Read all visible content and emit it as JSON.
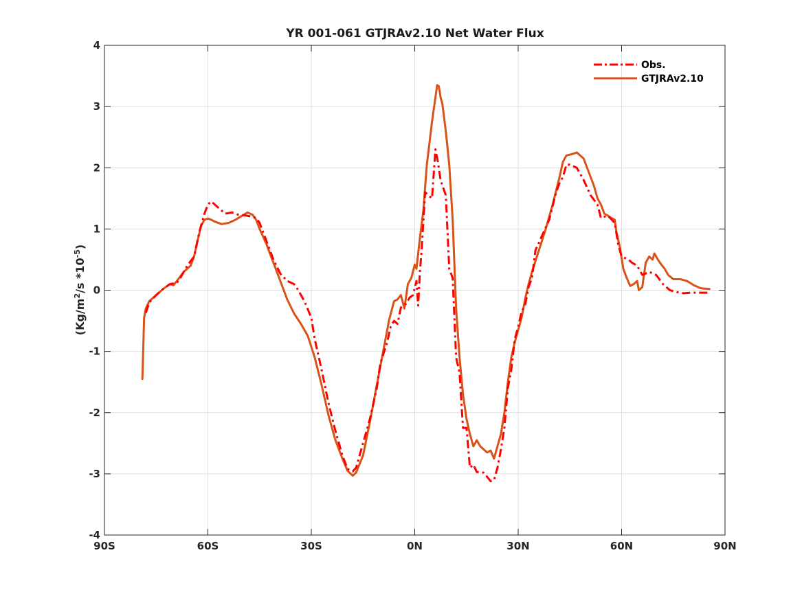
{
  "chart_data": {
    "type": "line",
    "title": "YR 001-061 GTJRAv2.10  Net Water Flux",
    "xlabel": "",
    "ylabel_parts": [
      "(Kg/m",
      "2",
      "/s *10",
      "-5",
      ")"
    ],
    "xlim": [
      -90,
      90
    ],
    "ylim": [
      -4,
      4
    ],
    "grid": true,
    "legend_position": "top-right",
    "x_ticks": [
      {
        "value": -90,
        "label": "90S"
      },
      {
        "value": -60,
        "label": "60S"
      },
      {
        "value": -30,
        "label": "30S"
      },
      {
        "value": 0,
        "label": "0N"
      },
      {
        "value": 30,
        "label": "30N"
      },
      {
        "value": 60,
        "label": "60N"
      },
      {
        "value": 90,
        "label": "90N"
      }
    ],
    "y_ticks": [
      {
        "value": 4,
        "label": "4"
      },
      {
        "value": 3,
        "label": "3"
      },
      {
        "value": 2,
        "label": "2"
      },
      {
        "value": 1,
        "label": "1"
      },
      {
        "value": 0,
        "label": "0"
      },
      {
        "value": -1,
        "label": "-1"
      },
      {
        "value": -2,
        "label": "-2"
      },
      {
        "value": -3,
        "label": "-3"
      },
      {
        "value": -4,
        "label": "-4"
      }
    ],
    "series": [
      {
        "name": "Obs.",
        "color": "#ff0000",
        "style": "dash-dot",
        "points": [
          [
            -78,
            -0.37
          ],
          [
            -77,
            -0.2
          ],
          [
            -75,
            -0.08
          ],
          [
            -73,
            0.02
          ],
          [
            -71,
            0.1
          ],
          [
            -69,
            0.12
          ],
          [
            -68,
            0.2
          ],
          [
            -66,
            0.4
          ],
          [
            -64,
            0.55
          ],
          [
            -62.5,
            0.95
          ],
          [
            -61,
            1.25
          ],
          [
            -60,
            1.4
          ],
          [
            -59,
            1.45
          ],
          [
            -57,
            1.35
          ],
          [
            -55,
            1.25
          ],
          [
            -53,
            1.27
          ],
          [
            -51,
            1.23
          ],
          [
            -49,
            1.22
          ],
          [
            -47,
            1.2
          ],
          [
            -46,
            1.18
          ],
          [
            -45,
            1.1
          ],
          [
            -43,
            0.8
          ],
          [
            -41,
            0.5
          ],
          [
            -39,
            0.27
          ],
          [
            -37,
            0.15
          ],
          [
            -35,
            0.1
          ],
          [
            -34,
            0.02
          ],
          [
            -32,
            -0.18
          ],
          [
            -30,
            -0.45
          ],
          [
            -29,
            -0.8
          ],
          [
            -27,
            -1.3
          ],
          [
            -25,
            -1.85
          ],
          [
            -23,
            -2.3
          ],
          [
            -21,
            -2.7
          ],
          [
            -19.5,
            -2.92
          ],
          [
            -18,
            -2.96
          ],
          [
            -17,
            -2.9
          ],
          [
            -15,
            -2.5
          ],
          [
            -13,
            -2.1
          ],
          [
            -11,
            -1.6
          ],
          [
            -10,
            -1.2
          ],
          [
            -8,
            -0.85
          ],
          [
            -7,
            -0.6
          ],
          [
            -6,
            -0.5
          ],
          [
            -5,
            -0.55
          ],
          [
            -4,
            -0.28
          ],
          [
            -2.5,
            -0.22
          ],
          [
            -1.5,
            -0.12
          ],
          [
            -0.5,
            -0.08
          ],
          [
            0.5,
            0.15
          ],
          [
            1,
            -0.25
          ],
          [
            1.5,
            0.3
          ],
          [
            2,
            0.65
          ],
          [
            3,
            1.6
          ],
          [
            4,
            1.55
          ],
          [
            5,
            1.5
          ],
          [
            6,
            2.3
          ],
          [
            6.7,
            2.1
          ],
          [
            7.5,
            1.8
          ],
          [
            9,
            1.55
          ],
          [
            10,
            0.35
          ],
          [
            11,
            0.2
          ],
          [
            12,
            -1.1
          ],
          [
            13,
            -1.35
          ],
          [
            14,
            -2.25
          ],
          [
            15,
            -2.25
          ],
          [
            16,
            -2.9
          ],
          [
            17,
            -2.85
          ],
          [
            18,
            -2.97
          ],
          [
            20,
            -2.98
          ],
          [
            21,
            -3.05
          ],
          [
            22,
            -3.12
          ],
          [
            23,
            -3.1
          ],
          [
            24,
            -2.9
          ],
          [
            25,
            -2.6
          ],
          [
            26,
            -2.25
          ],
          [
            27,
            -1.6
          ],
          [
            28,
            -1.3
          ],
          [
            29,
            -0.8
          ],
          [
            30,
            -0.6
          ],
          [
            31,
            -0.35
          ],
          [
            32,
            -0.25
          ],
          [
            33,
            0.05
          ],
          [
            34,
            0.2
          ],
          [
            35,
            0.65
          ],
          [
            37,
            0.9
          ],
          [
            39,
            1.15
          ],
          [
            41,
            1.6
          ],
          [
            42,
            1.75
          ],
          [
            43,
            1.85
          ],
          [
            44,
            2.05
          ],
          [
            45,
            2.05
          ],
          [
            47,
            2.0
          ],
          [
            49,
            1.8
          ],
          [
            51,
            1.55
          ],
          [
            53,
            1.4
          ],
          [
            54,
            1.18
          ],
          [
            56,
            1.22
          ],
          [
            58,
            1.1
          ],
          [
            59,
            0.75
          ],
          [
            60,
            0.55
          ],
          [
            62,
            0.5
          ],
          [
            63,
            0.45
          ],
          [
            64.5,
            0.4
          ],
          [
            66,
            0.25
          ],
          [
            68,
            0.3
          ],
          [
            70,
            0.25
          ],
          [
            72,
            0.1
          ],
          [
            74,
            0.0
          ],
          [
            76,
            -0.03
          ],
          [
            78,
            -0.05
          ],
          [
            80,
            -0.04
          ],
          [
            82,
            -0.04
          ],
          [
            85.5,
            -0.04
          ]
        ]
      },
      {
        "name": "GTJRAv2.10",
        "color": "#d95319",
        "style": "solid",
        "points": [
          [
            -79,
            -1.45
          ],
          [
            -78.5,
            -0.45
          ],
          [
            -78,
            -0.3
          ],
          [
            -77,
            -0.18
          ],
          [
            -75,
            -0.08
          ],
          [
            -73,
            0.02
          ],
          [
            -71,
            0.1
          ],
          [
            -70,
            0.08
          ],
          [
            -69,
            0.15
          ],
          [
            -67,
            0.3
          ],
          [
            -65,
            0.4
          ],
          [
            -64,
            0.55
          ],
          [
            -63,
            0.8
          ],
          [
            -62,
            1.05
          ],
          [
            -61,
            1.15
          ],
          [
            -60,
            1.17
          ],
          [
            -59,
            1.15
          ],
          [
            -58,
            1.12
          ],
          [
            -56,
            1.08
          ],
          [
            -54,
            1.1
          ],
          [
            -52,
            1.15
          ],
          [
            -50,
            1.22
          ],
          [
            -48.5,
            1.27
          ],
          [
            -47,
            1.23
          ],
          [
            -46,
            1.15
          ],
          [
            -45,
            1.0
          ],
          [
            -43,
            0.75
          ],
          [
            -41,
            0.45
          ],
          [
            -39,
            0.15
          ],
          [
            -37,
            -0.15
          ],
          [
            -35,
            -0.38
          ],
          [
            -33,
            -0.55
          ],
          [
            -31,
            -0.75
          ],
          [
            -29,
            -1.1
          ],
          [
            -27,
            -1.55
          ],
          [
            -25,
            -2.05
          ],
          [
            -23,
            -2.45
          ],
          [
            -21,
            -2.75
          ],
          [
            -19.5,
            -2.95
          ],
          [
            -18,
            -3.03
          ],
          [
            -17,
            -2.98
          ],
          [
            -15,
            -2.7
          ],
          [
            -13,
            -2.15
          ],
          [
            -11,
            -1.55
          ],
          [
            -9,
            -0.95
          ],
          [
            -7.5,
            -0.5
          ],
          [
            -6,
            -0.18
          ],
          [
            -5,
            -0.15
          ],
          [
            -4,
            -0.08
          ],
          [
            -3,
            -0.3
          ],
          [
            -2,
            0.1
          ],
          [
            -1,
            0.2
          ],
          [
            0,
            0.42
          ],
          [
            0.5,
            0.35
          ],
          [
            1.5,
            0.85
          ],
          [
            2.5,
            1.3
          ],
          [
            3.5,
            2.05
          ],
          [
            5,
            2.75
          ],
          [
            6,
            3.15
          ],
          [
            6.5,
            3.35
          ],
          [
            7,
            3.33
          ],
          [
            7.5,
            3.15
          ],
          [
            8,
            3.05
          ],
          [
            9,
            2.6
          ],
          [
            10,
            2.05
          ],
          [
            11,
            1.15
          ],
          [
            12,
            -0.3
          ],
          [
            13,
            -1.1
          ],
          [
            14,
            -1.7
          ],
          [
            15,
            -2.1
          ],
          [
            16,
            -2.35
          ],
          [
            17,
            -2.55
          ],
          [
            18,
            -2.45
          ],
          [
            19,
            -2.55
          ],
          [
            20,
            -2.6
          ],
          [
            21,
            -2.65
          ],
          [
            22,
            -2.62
          ],
          [
            23,
            -2.75
          ],
          [
            24,
            -2.55
          ],
          [
            25,
            -2.35
          ],
          [
            26,
            -2.0
          ],
          [
            27,
            -1.5
          ],
          [
            28,
            -1.1
          ],
          [
            29,
            -0.85
          ],
          [
            30,
            -0.65
          ],
          [
            31,
            -0.45
          ],
          [
            32,
            -0.15
          ],
          [
            33,
            0.1
          ],
          [
            34,
            0.3
          ],
          [
            36,
            0.65
          ],
          [
            38,
            1.0
          ],
          [
            40,
            1.4
          ],
          [
            42,
            1.85
          ],
          [
            43,
            2.1
          ],
          [
            44,
            2.2
          ],
          [
            46,
            2.23
          ],
          [
            47,
            2.25
          ],
          [
            48,
            2.2
          ],
          [
            49,
            2.15
          ],
          [
            50,
            2.0
          ],
          [
            51,
            1.85
          ],
          [
            52,
            1.7
          ],
          [
            53,
            1.5
          ],
          [
            54,
            1.4
          ],
          [
            55,
            1.25
          ],
          [
            56,
            1.22
          ],
          [
            57,
            1.18
          ],
          [
            58,
            1.15
          ],
          [
            58.5,
            0.95
          ],
          [
            59.5,
            0.7
          ],
          [
            60.5,
            0.35
          ],
          [
            61.5,
            0.2
          ],
          [
            62.5,
            0.07
          ],
          [
            63.5,
            0.1
          ],
          [
            64.5,
            0.15
          ],
          [
            65,
            0.0
          ],
          [
            66,
            0.05
          ],
          [
            67,
            0.45
          ],
          [
            68,
            0.55
          ],
          [
            69,
            0.5
          ],
          [
            69.5,
            0.6
          ],
          [
            70.5,
            0.5
          ],
          [
            71.5,
            0.42
          ],
          [
            72.5,
            0.35
          ],
          [
            73.5,
            0.25
          ],
          [
            75,
            0.18
          ],
          [
            77,
            0.18
          ],
          [
            79,
            0.15
          ],
          [
            81,
            0.08
          ],
          [
            83,
            0.03
          ],
          [
            85.5,
            0.02
          ]
        ]
      }
    ]
  }
}
